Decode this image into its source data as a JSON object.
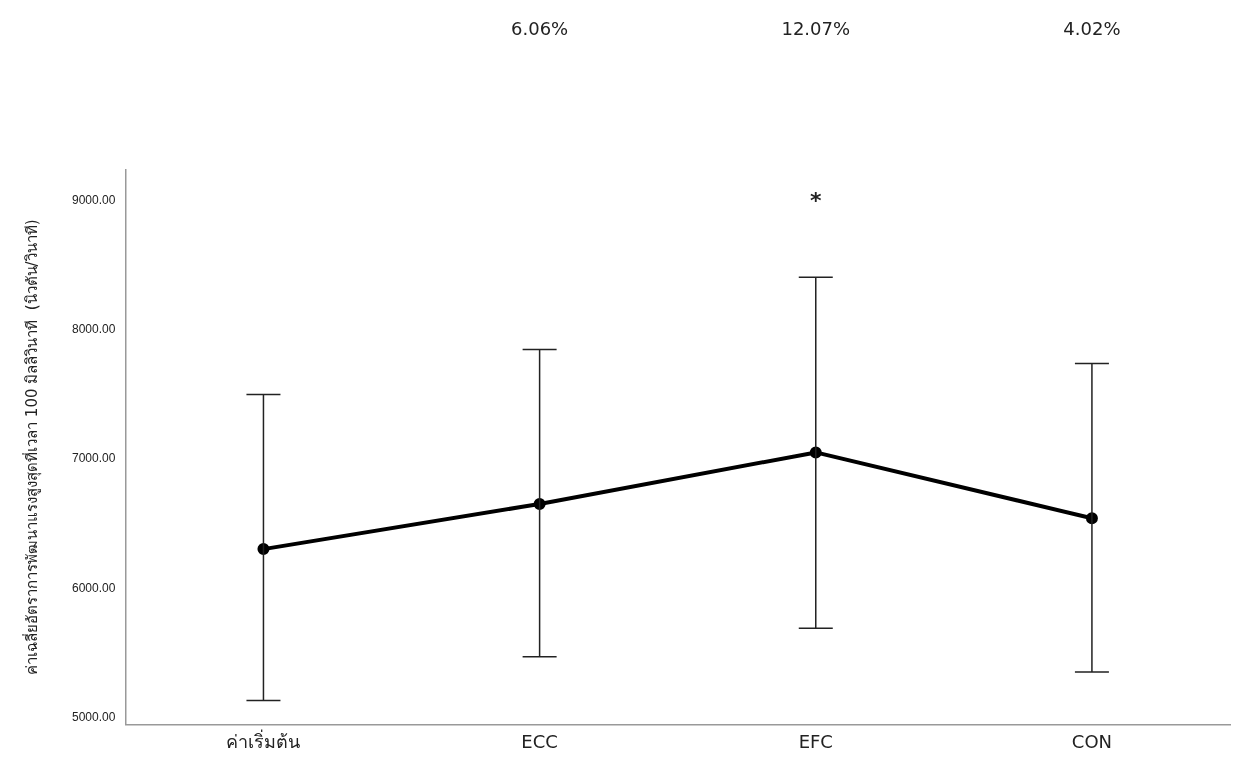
{
  "chart_data": {
    "type": "line",
    "ylabel": "ค่าเฉลี่ยอัตราการพัฒนาแรงสูงสุดที่เวลา 100 มิลลิวินาที  (นิวตัน/วินาที)",
    "categories": [
      "ค่าเริ่มต้น",
      "ECC",
      "EFC",
      "CON"
    ],
    "series": [
      {
        "color": "#000000",
        "values": [
          6303,
          6653,
          7052,
          6542
        ],
        "errors": [
          [
            5130,
            7500
          ],
          [
            5470,
            7850
          ],
          [
            5690,
            8410
          ],
          [
            5350,
            7740
          ]
        ]
      }
    ],
    "ylim": [
      4945,
      9240
    ],
    "yticks": [
      {
        "value": 5000,
        "label": "5000.00"
      },
      {
        "value": 6000,
        "label": "6000.00"
      },
      {
        "value": 7000,
        "label": "7000.00"
      },
      {
        "value": 8000,
        "label": "8000.00"
      },
      {
        "value": 9000,
        "label": "9000.00"
      }
    ],
    "grid": false,
    "legend": false,
    "marker": "circle",
    "line_style": "solid",
    "annotations": [
      "6.06%",
      "12.07%",
      "4.02%",
      "*"
    ]
  }
}
